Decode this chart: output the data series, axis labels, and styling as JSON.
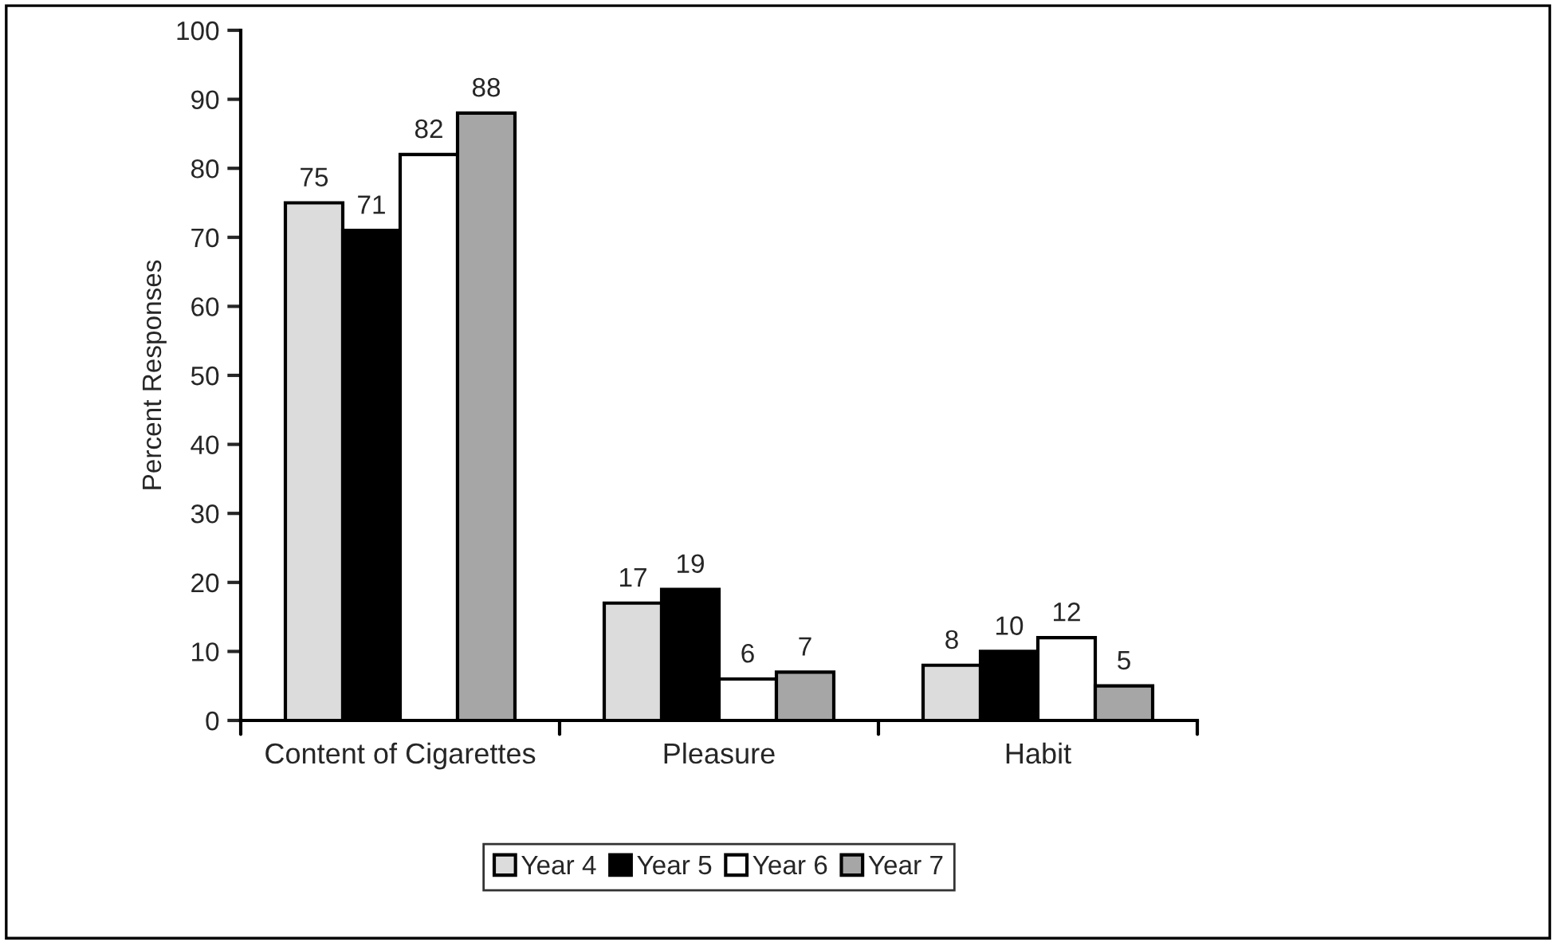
{
  "chart_data": {
    "type": "bar",
    "ylabel": "Percent Responses",
    "categories": [
      "Content of Cigarettes",
      "Pleasure",
      "Habit"
    ],
    "series": [
      {
        "name": "Year 4",
        "color": "#dcdcdc",
        "values": [
          75,
          17,
          8
        ]
      },
      {
        "name": "Year 5",
        "color": "#000000",
        "values": [
          71,
          19,
          10
        ]
      },
      {
        "name": "Year 6",
        "color": "#ffffff",
        "values": [
          82,
          6,
          12
        ]
      },
      {
        "name": "Year 7",
        "color": "#a6a6a6",
        "values": [
          88,
          7,
          5
        ]
      }
    ],
    "ylim": [
      0,
      100
    ],
    "yticks": [
      0,
      10,
      20,
      30,
      40,
      50,
      60,
      70,
      80,
      90,
      100
    ],
    "data_labels": true,
    "grid": false,
    "legend": "bottom"
  }
}
